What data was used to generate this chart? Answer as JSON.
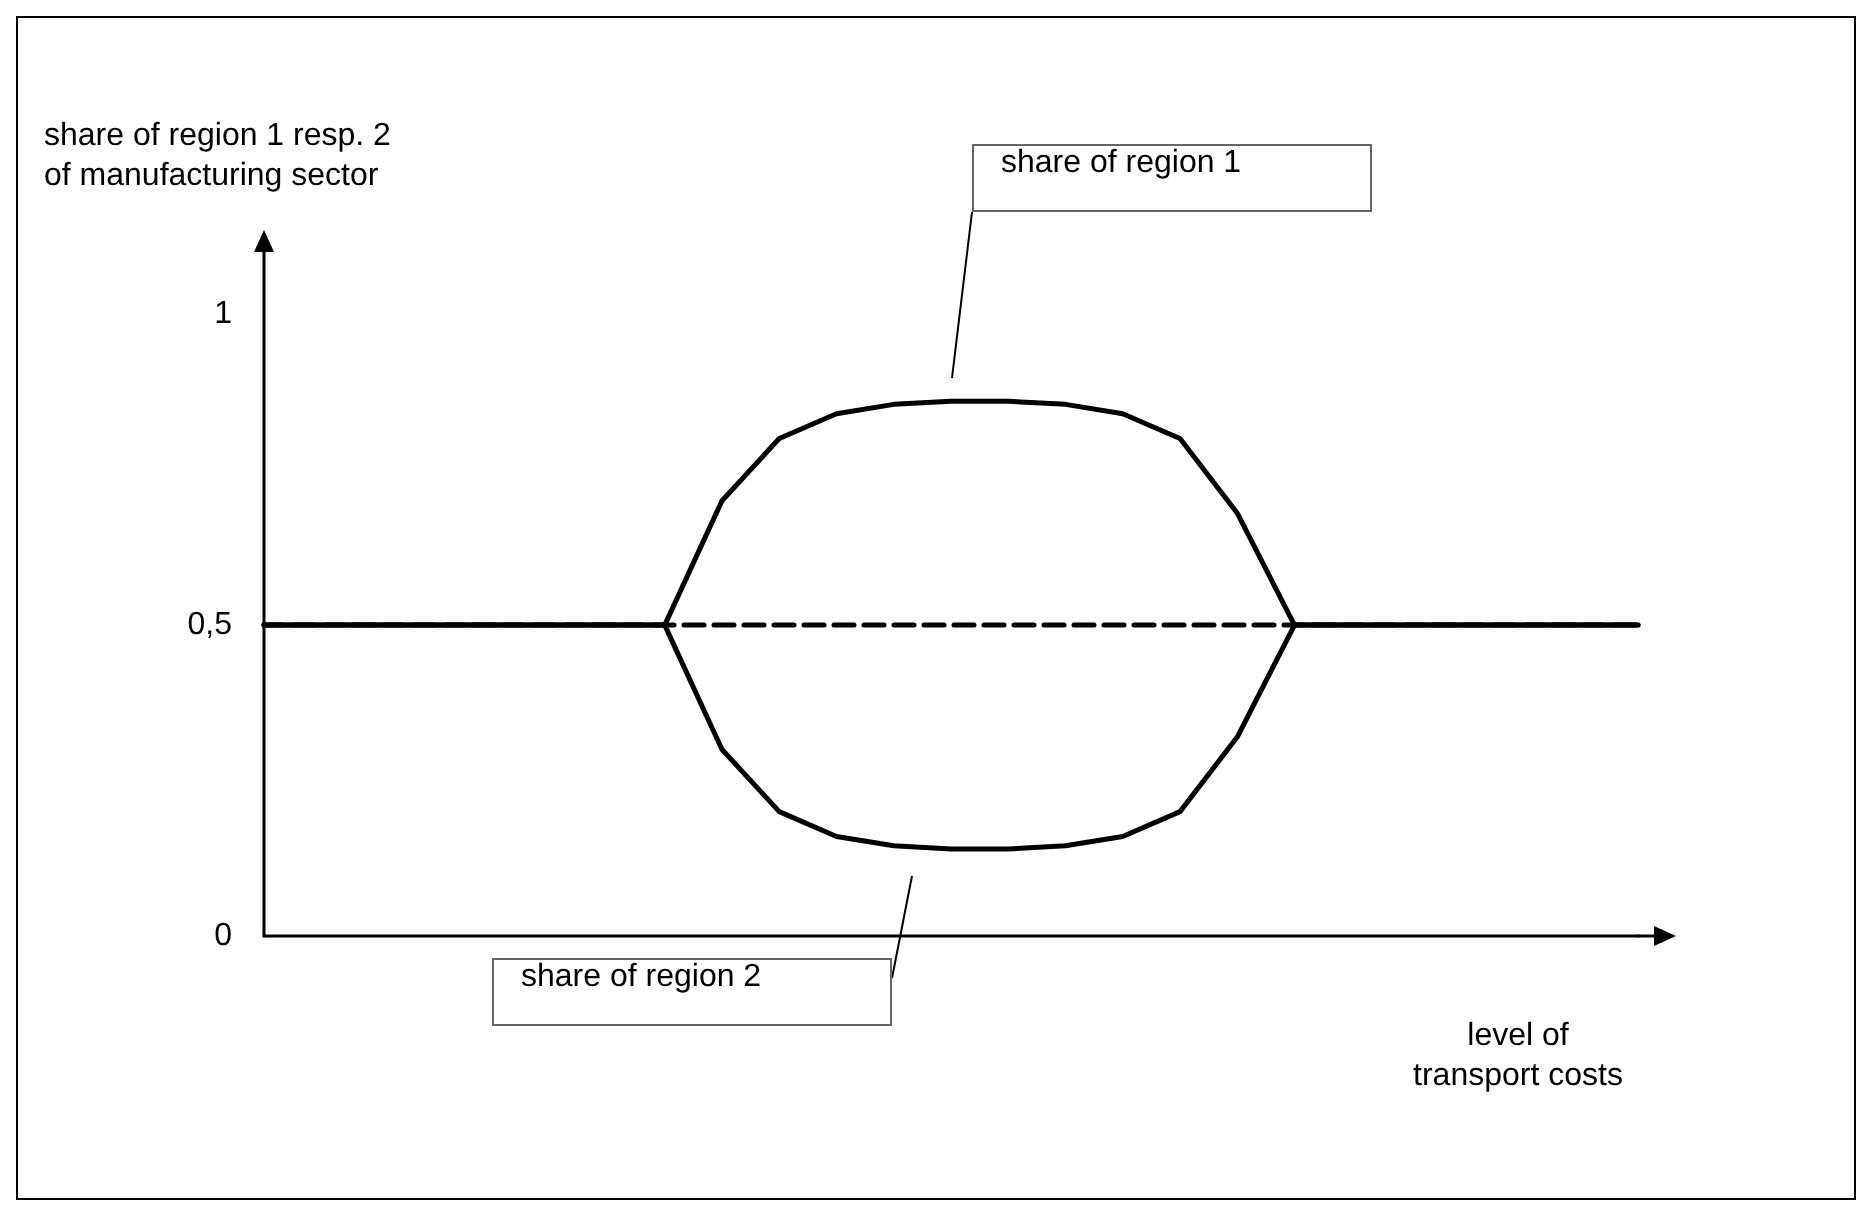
{
  "chart_data": {
    "type": "line",
    "ylabel": "share of region 1 resp. 2\nof manufacturing sector",
    "xlabel": "level of\ntransport costs",
    "categories": [
      null,
      null,
      null,
      null,
      null,
      null,
      null,
      null,
      null,
      null,
      null,
      null,
      null,
      null,
      null,
      null,
      null,
      null,
      null,
      null,
      null,
      null,
      null,
      null,
      null
    ],
    "ylim": [
      0,
      1.1
    ],
    "yticks": [
      0,
      {
        "value": 0.5,
        "label": "0,5"
      },
      1
    ],
    "tick_labels": "y",
    "grid": false,
    "marker": "none",
    "series": [
      {
        "color": "#000000",
        "line_style": "solid",
        "values": [
          0.5,
          0.5,
          0.5,
          0.5,
          0.5,
          0.5,
          0.5,
          0.5,
          0.7,
          0.8,
          0.84,
          0.855,
          0.86,
          0.86,
          0.855,
          0.84,
          0.8,
          0.68,
          0.5,
          0.5,
          0.5,
          0.5,
          0.5,
          0.5,
          0.5
        ]
      },
      {
        "color": "#000000",
        "line_style": "solid",
        "values": [
          0.5,
          0.5,
          0.5,
          0.5,
          0.5,
          0.5,
          0.5,
          0.5,
          0.3,
          0.2,
          0.16,
          0.145,
          0.14,
          0.14,
          0.145,
          0.16,
          0.2,
          0.32,
          0.5,
          0.5,
          0.5,
          0.5,
          0.5,
          0.5,
          0.5
        ]
      },
      {
        "color": "#000000",
        "line_style": "dashed",
        "values": [
          0.5,
          0.5,
          0.5,
          0.5,
          0.5,
          0.5,
          0.5,
          0.5,
          0.5,
          0.5,
          0.5,
          0.5,
          0.5,
          0.5,
          0.5,
          0.5,
          0.5,
          0.5,
          0.5,
          0.5,
          0.5,
          0.5,
          0.5,
          0.5,
          0.5
        ]
      }
    ],
    "annotations": [
      "share of region 1",
      "share of region 2"
    ]
  }
}
